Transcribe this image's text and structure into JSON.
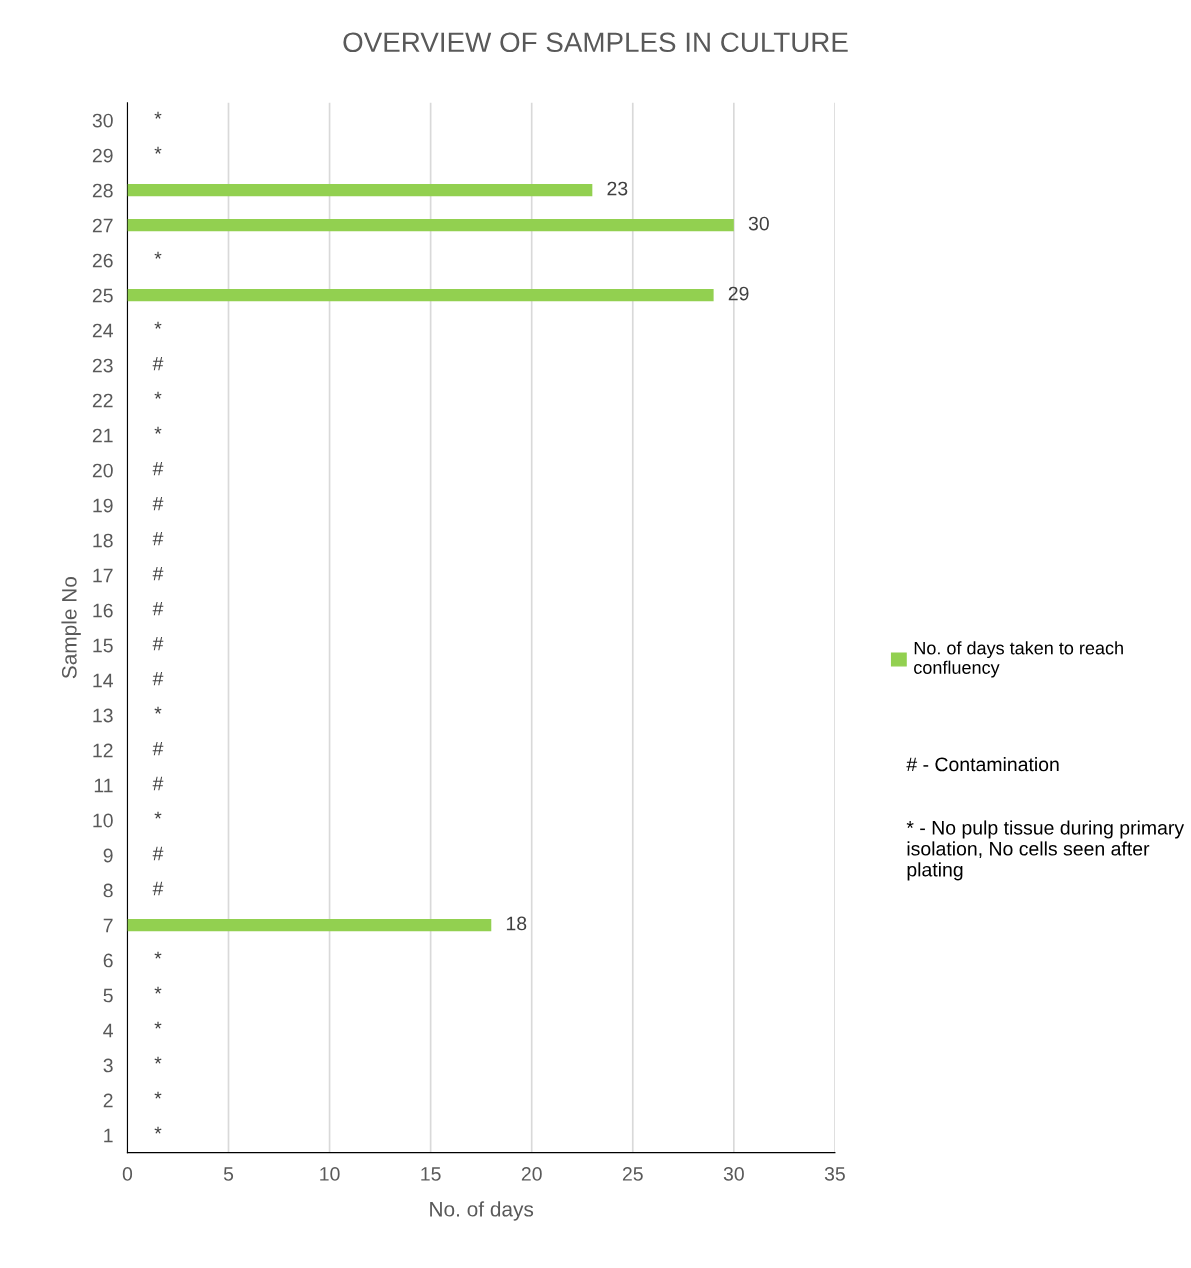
{
  "chart_data": {
    "type": "bar",
    "orientation": "horizontal",
    "title": "OVERVIEW OF SAMPLES IN CULTURE",
    "xlabel": "No. of days",
    "ylabel": "Sample No",
    "categories": [
      "30",
      "29",
      "28",
      "27",
      "26",
      "25",
      "24",
      "23",
      "22",
      "21",
      "20",
      "19",
      "18",
      "17",
      "16",
      "15",
      "14",
      "13",
      "12",
      "11",
      "10",
      "9",
      "8",
      "7",
      "6",
      "5",
      "4",
      "3",
      "2",
      "1"
    ],
    "series": [
      {
        "name": "No. of days taken to reach confluency",
        "color": "#92d050",
        "values": [
          null,
          null,
          23,
          30,
          null,
          29,
          null,
          null,
          null,
          null,
          null,
          null,
          null,
          null,
          null,
          null,
          null,
          null,
          null,
          null,
          null,
          null,
          null,
          18,
          null,
          null,
          null,
          null,
          null,
          null
        ],
        "value_labels": [
          "*",
          "*",
          "23",
          "30",
          "*",
          "29",
          "*",
          "#",
          "*",
          "*",
          "#",
          "#",
          "#",
          "#",
          "#",
          "#",
          "#",
          "*",
          "#",
          "#",
          "*",
          "#",
          "#",
          "18",
          "*",
          "*",
          "*",
          "*",
          "*",
          "*"
        ]
      }
    ],
    "xlim": [
      0,
      35
    ],
    "xticks": [
      0,
      5,
      10,
      15,
      20,
      25,
      30,
      35
    ],
    "grid": "x",
    "legend": "right",
    "annotations": [
      "# - Contamination",
      "* - No pulp tissue during primary isolation, No cells seen after plating"
    ]
  }
}
